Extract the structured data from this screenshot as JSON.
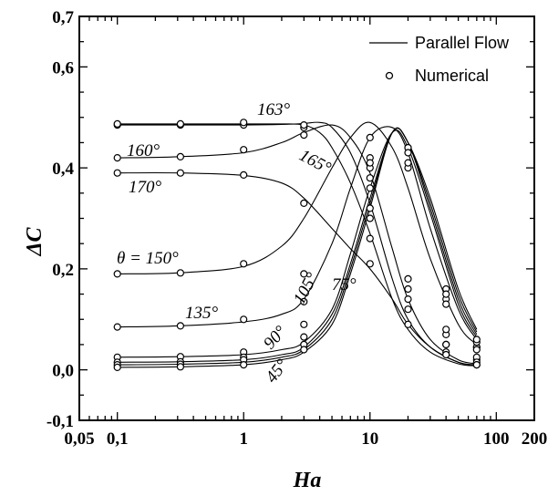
{
  "chart_data": {
    "type": "line",
    "xlabel": "Ha",
    "ylabel": "ΔC",
    "xscale": "log",
    "xlim": [
      0.05,
      200
    ],
    "ylim": [
      -0.1,
      0.7
    ],
    "x_tick_labels": [
      {
        "value": 0.05,
        "label": "0,05"
      },
      {
        "value": 0.1,
        "label": "0,1"
      },
      {
        "value": 1,
        "label": "1"
      },
      {
        "value": 10,
        "label": "10"
      },
      {
        "value": 100,
        "label": "100"
      },
      {
        "value": 200,
        "label": "200"
      }
    ],
    "y_tick_labels": [
      {
        "value": -0.1,
        "label": "-0,1"
      },
      {
        "value": 0.0,
        "label": "0,0"
      },
      {
        "value": 0.2,
        "label": "0,2"
      },
      {
        "value": 0.4,
        "label": "0,4"
      },
      {
        "value": 0.6,
        "label": "0,6"
      },
      {
        "value": 0.7,
        "label": "0,7"
      }
    ],
    "legend": {
      "position": "top-right",
      "entries": [
        {
          "label": "Parallel Flow",
          "marker": "line"
        },
        {
          "label": "Numerical",
          "marker": "circle"
        }
      ]
    },
    "numerical_x": [
      0.1,
      0.316,
      1,
      3,
      10,
      20,
      40,
      70
    ],
    "series": [
      {
        "label": "θ = 150°",
        "curve_x": [
          0.1,
          0.3,
          1,
          2,
          3,
          5,
          7,
          10,
          15,
          20,
          30,
          50,
          70
        ],
        "curve_y": [
          0.19,
          0.192,
          0.205,
          0.245,
          0.3,
          0.4,
          0.46,
          0.49,
          0.44,
          0.36,
          0.22,
          0.09,
          0.05
        ],
        "points": [
          0.19,
          0.192,
          0.21,
          0.19,
          0.46,
          0.18,
          0.07,
          0.045
        ]
      },
      {
        "label": "135°",
        "curve_x": [
          0.1,
          0.3,
          1,
          2,
          3,
          5,
          7,
          10,
          15,
          20,
          30,
          50,
          70
        ],
        "curve_y": [
          0.085,
          0.087,
          0.095,
          0.11,
          0.14,
          0.25,
          0.36,
          0.46,
          0.48,
          0.43,
          0.28,
          0.12,
          0.06
        ],
        "points": [
          0.085,
          0.087,
          0.1,
          0.135,
          0.42,
          0.4,
          0.08,
          0.045
        ]
      },
      {
        "label": "105°",
        "curve_x": [
          0.1,
          0.3,
          1,
          2,
          3,
          5,
          7,
          10,
          15,
          20,
          30,
          50,
          70
        ],
        "curve_y": [
          0.025,
          0.026,
          0.03,
          0.04,
          0.055,
          0.12,
          0.23,
          0.36,
          0.47,
          0.44,
          0.31,
          0.13,
          0.065
        ],
        "points": [
          0.025,
          0.026,
          0.035,
          0.09,
          0.36,
          0.44,
          0.14,
          0.055
        ]
      },
      {
        "label": "90°",
        "curve_x": [
          0.1,
          0.3,
          1,
          2,
          3,
          5,
          7,
          10,
          15,
          20,
          30,
          50,
          70
        ],
        "curve_y": [
          0.015,
          0.016,
          0.02,
          0.03,
          0.045,
          0.11,
          0.21,
          0.34,
          0.47,
          0.45,
          0.32,
          0.14,
          0.07
        ],
        "points": [
          0.015,
          0.016,
          0.025,
          0.065,
          0.4,
          0.44,
          0.16,
          0.06
        ]
      },
      {
        "label": "75°",
        "curve_x": [
          0.1,
          0.3,
          1,
          2,
          3,
          5,
          7,
          10,
          15,
          20,
          30,
          50,
          70
        ],
        "curve_y": [
          0.01,
          0.011,
          0.015,
          0.025,
          0.04,
          0.1,
          0.2,
          0.33,
          0.47,
          0.45,
          0.33,
          0.15,
          0.075
        ],
        "points": [
          0.01,
          0.011,
          0.02,
          0.05,
          0.41,
          0.41,
          0.13,
          0.04
        ]
      },
      {
        "label": "45°",
        "curve_x": [
          0.1,
          0.3,
          1,
          2,
          3,
          5,
          7,
          10,
          15,
          20,
          30,
          50,
          70
        ],
        "curve_y": [
          0.005,
          0.006,
          0.01,
          0.02,
          0.035,
          0.09,
          0.19,
          0.32,
          0.47,
          0.45,
          0.34,
          0.16,
          0.08
        ],
        "points": [
          0.005,
          0.006,
          0.01,
          0.04,
          0.3,
          0.43,
          0.15,
          0.02
        ]
      },
      {
        "label": "160°",
        "curve_x": [
          0.1,
          0.3,
          1,
          2,
          3,
          5,
          7,
          10,
          15,
          20,
          30,
          50,
          70
        ],
        "curve_y": [
          0.42,
          0.422,
          0.43,
          0.45,
          0.47,
          0.485,
          0.46,
          0.39,
          0.24,
          0.14,
          0.06,
          0.02,
          0.012
        ],
        "points": [
          0.42,
          0.422,
          0.436,
          0.465,
          0.38,
          0.14,
          0.05,
          0.025
        ]
      },
      {
        "label": "163°",
        "curve_x": [
          0.1,
          0.3,
          1,
          2,
          3,
          4,
          5,
          7,
          10,
          15,
          20,
          30,
          50,
          70
        ],
        "curve_y": [
          0.485,
          0.485,
          0.485,
          0.486,
          0.488,
          0.49,
          0.48,
          0.43,
          0.33,
          0.18,
          0.1,
          0.045,
          0.015,
          0.01
        ],
        "points": [
          0.485,
          0.485,
          0.485,
          0.48,
          0.32,
          0.16,
          0.05,
          0.015
        ]
      },
      {
        "label": "165°",
        "curve_x": [
          0.1,
          0.3,
          1,
          2,
          3,
          4,
          5,
          7,
          10,
          15,
          20,
          30,
          50,
          70
        ],
        "curve_y": [
          0.487,
          0.487,
          0.487,
          0.487,
          0.485,
          0.47,
          0.44,
          0.37,
          0.27,
          0.14,
          0.08,
          0.035,
          0.012,
          0.008
        ],
        "points": [
          0.487,
          0.487,
          0.49,
          0.485,
          0.26,
          0.12,
          0.035,
          0.01
        ]
      },
      {
        "label": "170°",
        "curve_x": [
          0.1,
          0.3,
          1,
          2,
          3,
          5,
          7,
          10,
          15,
          20,
          30,
          50,
          70
        ],
        "curve_y": [
          0.39,
          0.39,
          0.385,
          0.37,
          0.34,
          0.28,
          0.24,
          0.2,
          0.14,
          0.09,
          0.045,
          0.015,
          0.008
        ],
        "points": [
          0.39,
          0.39,
          0.386,
          0.33,
          0.21,
          0.09,
          0.03,
          0.01
        ]
      }
    ],
    "annotations": [
      {
        "text": "163°",
        "series": "163°"
      },
      {
        "text": "160°",
        "series": "160°"
      },
      {
        "text": "165°",
        "series": "165°"
      },
      {
        "text": "170°",
        "series": "170°"
      },
      {
        "text": "θ = 150°",
        "series": "θ = 150°"
      },
      {
        "text": "135°",
        "series": "135°"
      },
      {
        "text": "105°",
        "series": "105°"
      },
      {
        "text": "75°",
        "series": "75°"
      },
      {
        "text": "90°",
        "series": "90°"
      },
      {
        "text": "45°",
        "series": "45°"
      }
    ]
  }
}
